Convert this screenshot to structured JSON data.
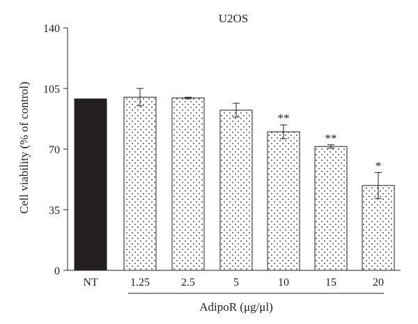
{
  "chart_data": {
    "type": "bar",
    "title": "U2OS",
    "ylabel": "Cell viability (% of control)",
    "group_label": "AdipoR (μg/μl)",
    "categories": [
      "NT",
      "1.25",
      "2.5",
      "5",
      "10",
      "15",
      "20"
    ],
    "values": [
      99,
      100,
      99.5,
      92.5,
      80,
      71.5,
      49
    ],
    "errors": [
      0,
      5,
      0.5,
      4,
      4,
      1,
      7.5
    ],
    "significance": [
      "",
      "",
      "",
      "",
      "**",
      "**",
      "*"
    ],
    "fill_colors": [
      "#231f20",
      "dotted",
      "dotted",
      "dotted",
      "dotted",
      "dotted",
      "dotted"
    ],
    "ylim": [
      0,
      140
    ],
    "yticks": [
      0,
      35,
      70,
      105,
      140
    ],
    "grid": false
  }
}
